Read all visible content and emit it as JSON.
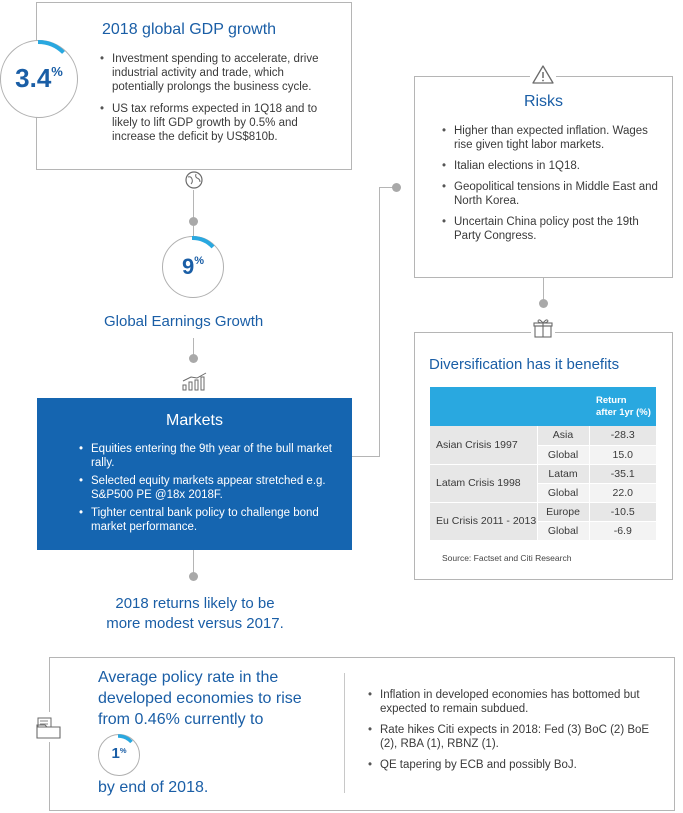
{
  "gdp": {
    "value": "3.4",
    "unit": "%",
    "title": "2018 global GDP growth",
    "bullets": [
      "Investment spending to accelerate, drive industrial activity and trade, which potentially prolongs the business cycle.",
      "US tax reforms expected in 1Q18 and to likely to lift GDP growth by 0.5% and increase the deficit by US$810b."
    ]
  },
  "earnings": {
    "value": "9",
    "unit": "%",
    "label": "Global Earnings Growth"
  },
  "markets": {
    "title": "Markets",
    "bullets": [
      "Equities entering the 9th year of the bull market rally.",
      "Selected equity markets appear stretched e.g. S&P500 PE @18x 2018F.",
      "Tighter central bank policy to challenge bond market performance."
    ]
  },
  "returns_note": {
    "line1": "2018 returns likely to be",
    "line2": "more modest versus 2017."
  },
  "risks": {
    "title": "Risks",
    "bullets": [
      "Higher than expected inflation. Wages rise given tight labor markets.",
      "Italian elections in 1Q18.",
      "Geopolitical tensions in Middle East and North Korea.",
      "Uncertain China policy post the 19th Party Congress."
    ]
  },
  "diversification": {
    "title": "Diversification has it benefits",
    "header_line1": "Return",
    "header_line2": "after 1yr (%)",
    "groups": [
      {
        "name": "Asian Crisis 1997",
        "rows": [
          {
            "region": "Asia",
            "value": "-28.3"
          },
          {
            "region": "Global",
            "value": "15.0"
          }
        ]
      },
      {
        "name": "Latam Crisis 1998",
        "rows": [
          {
            "region": "Latam",
            "value": "-35.1"
          },
          {
            "region": "Global",
            "value": "22.0"
          }
        ]
      },
      {
        "name": "Eu Crisis 2011 - 2013",
        "rows": [
          {
            "region": "Europe",
            "value": "-10.5"
          },
          {
            "region": "Global",
            "value": "-6.9"
          }
        ]
      }
    ],
    "source": "Source: Factset and Citi Research"
  },
  "policy": {
    "line1": "Average policy rate in the",
    "line2": "developed economies to rise",
    "line3": "from 0.46% currently to",
    "value": "1",
    "unit": "%",
    "line4": "by end of 2018.",
    "bullets": [
      "Inflation in developed economies has bottomed but expected to remain subdued.",
      "Rate hikes Citi expects in 2018: Fed (3) BoC (2) BoE (2), RBA (1), RBNZ (1).",
      "QE tapering by ECB and possibly BoJ."
    ]
  },
  "colors": {
    "accent_blue": "#1a5ea6",
    "markets_bg": "#1565b0",
    "table_header": "#29a8e0",
    "progress": "#29a8e0",
    "border": "#b5b5b5"
  },
  "icons": [
    "globe-icon",
    "chart-growth-icon",
    "warning-icon",
    "gift-icon",
    "folder-icon"
  ]
}
